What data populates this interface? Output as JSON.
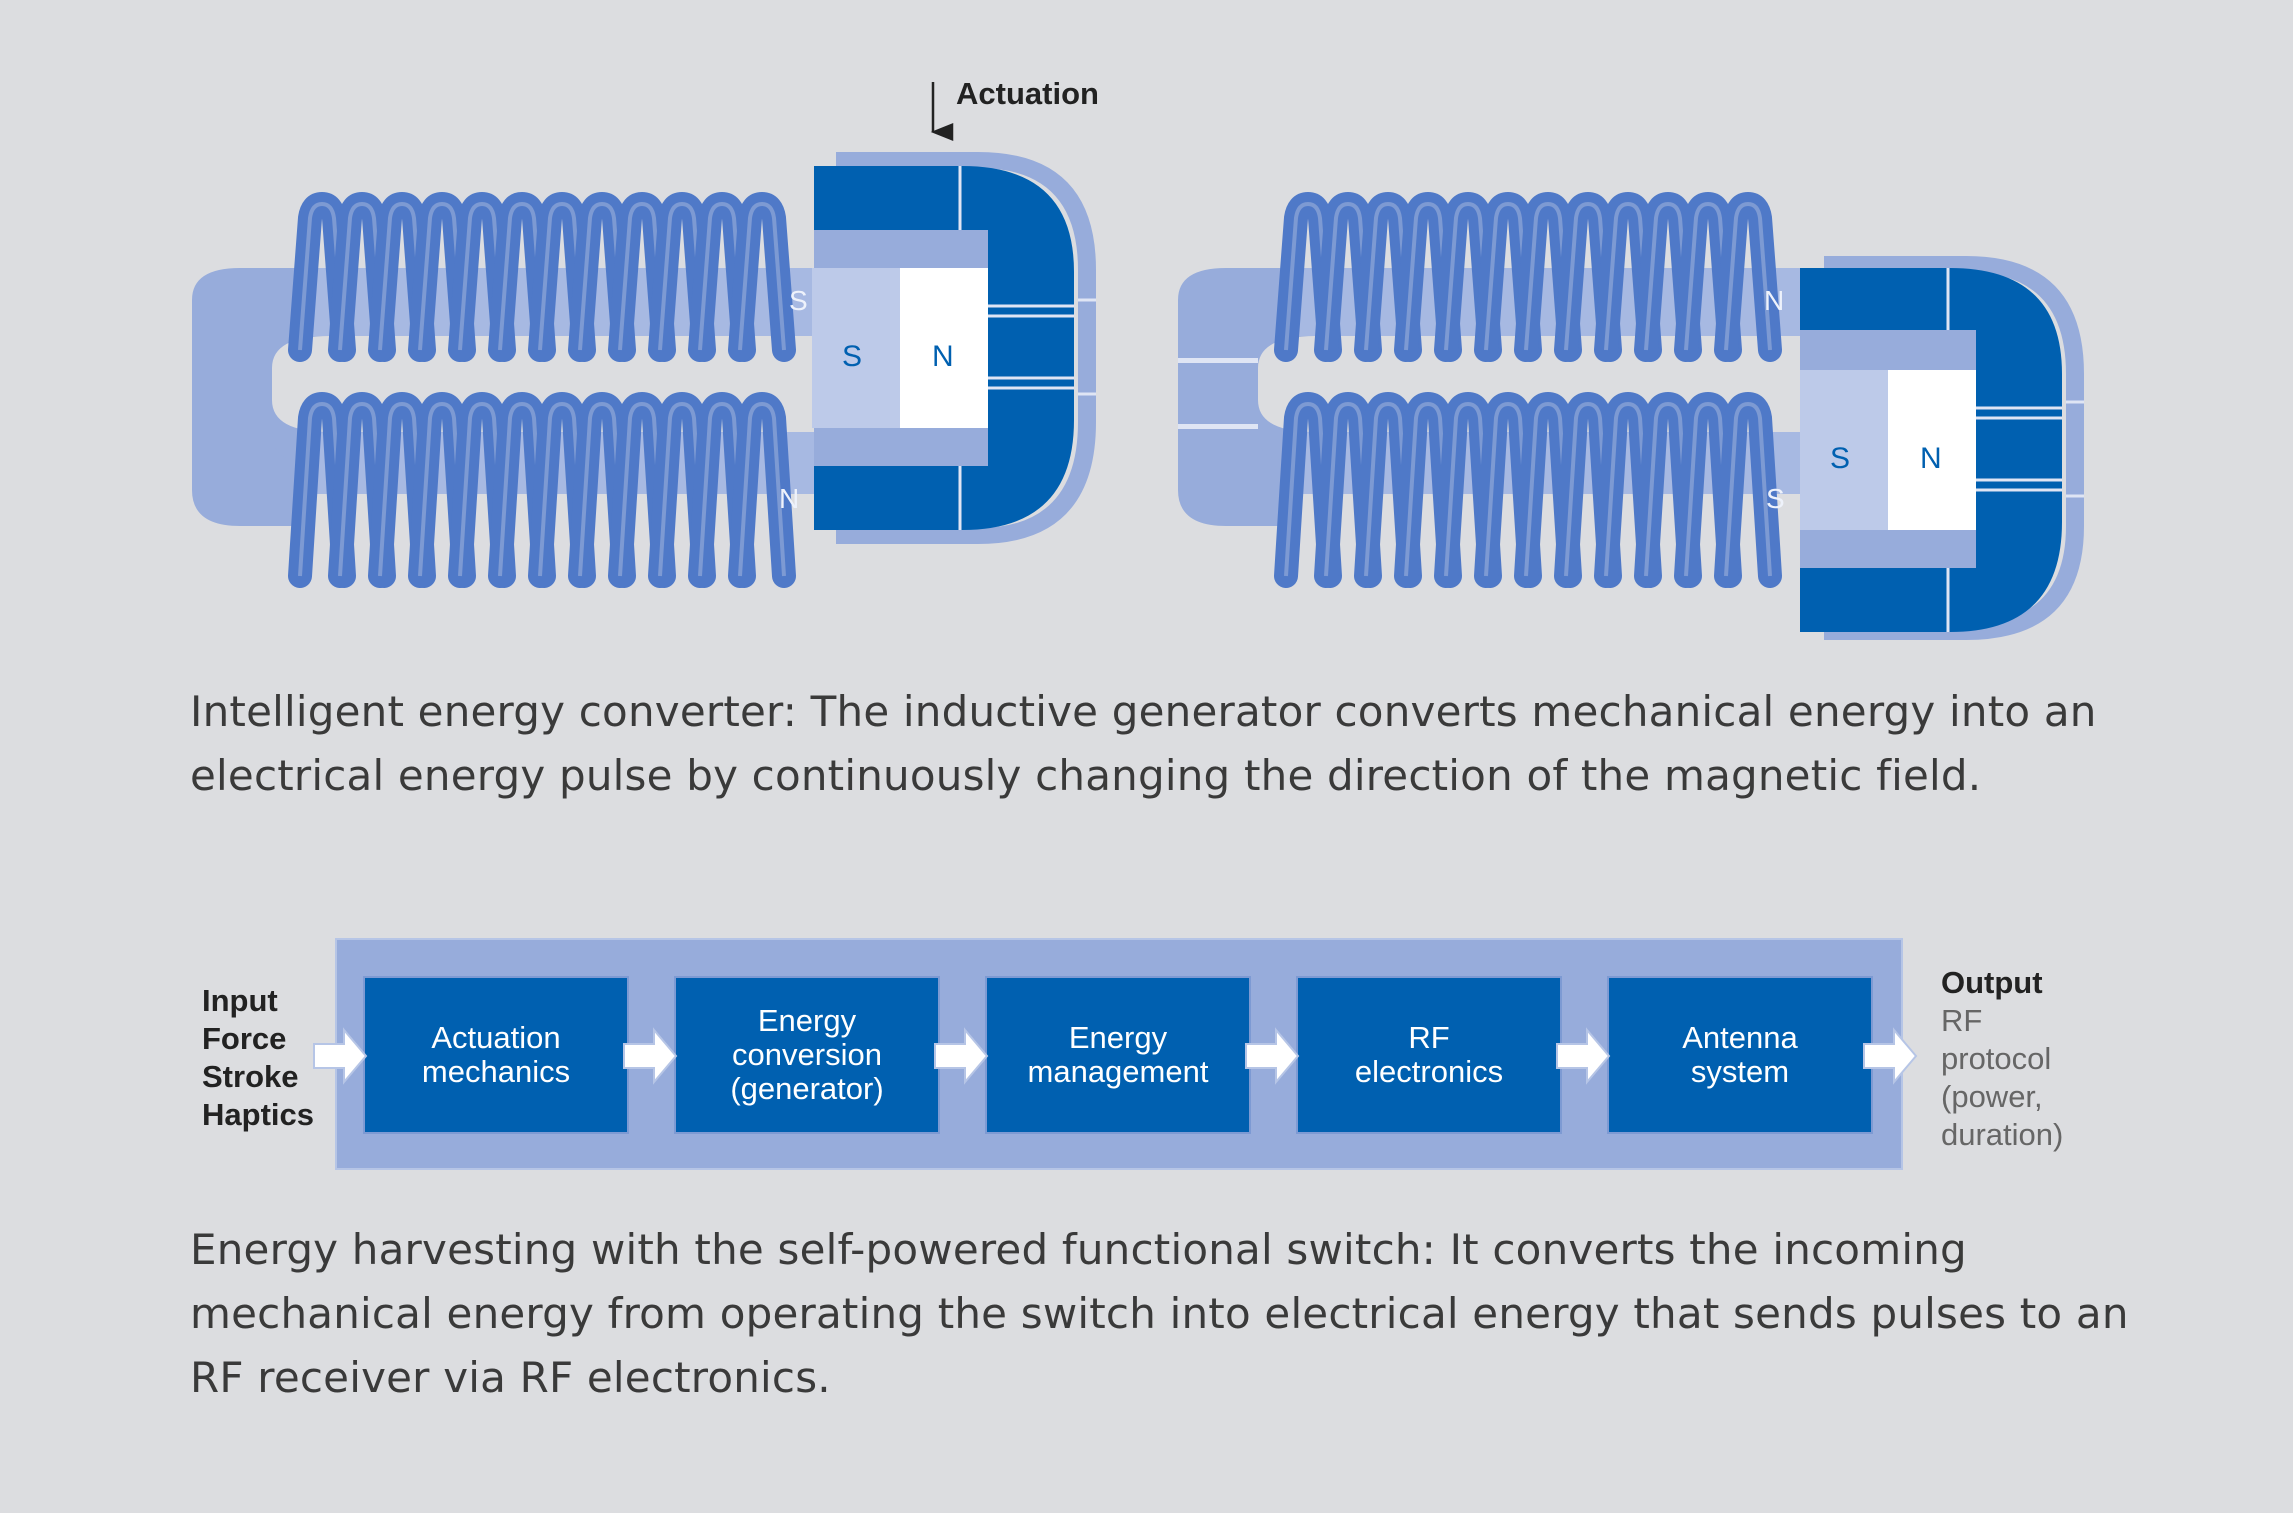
{
  "generator": {
    "actuation_label": "Actuation",
    "poles": {
      "left_core_top": "S",
      "left_core_bottom": "N",
      "left_magnet_s": "S",
      "left_magnet_n": "N",
      "right_core_top": "N",
      "right_core_bottom": "S",
      "right_magnet_s": "S",
      "right_magnet_n": "N"
    }
  },
  "captions": {
    "converter": "Intelligent energy converter: The inductive generator converts mechanical energy into an electrical energy pulse by continuously changing the direction of the magnetic field.",
    "harvesting": "Energy harvesting with the self-powered functional switch: It converts the incoming mechanical energy from operating the switch into electrical energy that sends pulses to an RF receiver via RF electronics."
  },
  "flow": {
    "input": [
      "Input",
      "Force",
      "Stroke",
      "Haptics"
    ],
    "blocks": [
      "Actuation\nmechanics",
      "Energy\nconversion\n(generator)",
      "Energy\nmanagement",
      "RF\nelectronics",
      "Antenna\nsystem"
    ],
    "output": {
      "title": "Output",
      "lines": [
        "RF",
        "protocol",
        "(power,",
        "duration)"
      ]
    }
  },
  "colors": {
    "background": "#dcdde0",
    "dark_blue": "#0060b0",
    "mid_blue": "#4f79c8",
    "light_blue": "#97acdb",
    "pale_blue": "#bdcae9"
  }
}
